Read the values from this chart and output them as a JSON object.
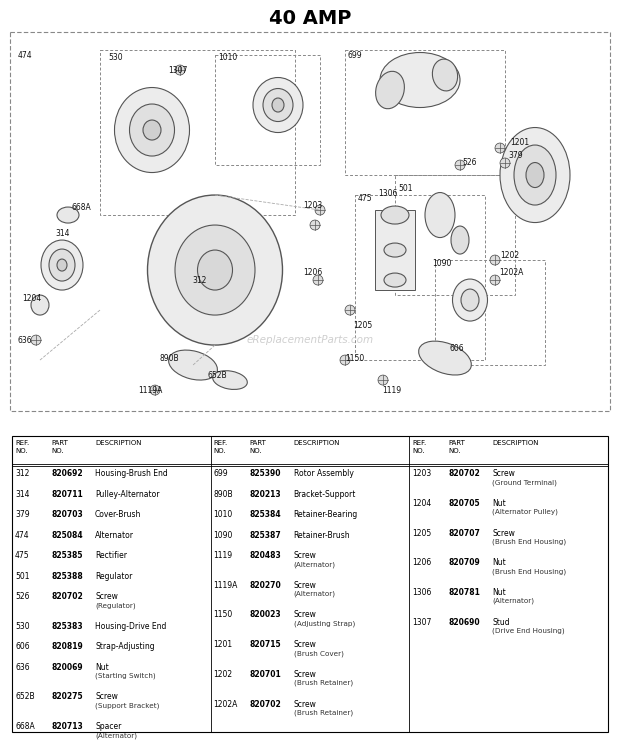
{
  "title": "40 AMP",
  "title_fontsize": 14,
  "title_fontweight": "bold",
  "bg_color": "#ffffff",
  "watermark": "eReplacementParts.com",
  "parts_table": {
    "col1": [
      [
        "312",
        "820692",
        "Housing-Brush End",
        ""
      ],
      [
        "314",
        "820711",
        "Pulley-Alternator",
        ""
      ],
      [
        "379",
        "820703",
        "Cover-Brush",
        ""
      ],
      [
        "474",
        "825084",
        "Alternator",
        ""
      ],
      [
        "475",
        "825385",
        "Rectifier",
        ""
      ],
      [
        "501",
        "825388",
        "Regulator",
        ""
      ],
      [
        "526",
        "820702",
        "Screw",
        "(Regulator)"
      ],
      [
        "530",
        "825383",
        "Housing-Drive End",
        ""
      ],
      [
        "606",
        "820819",
        "Strap-Adjusting",
        ""
      ],
      [
        "636",
        "820069",
        "Nut",
        "(Starting Switch)"
      ],
      [
        "652B",
        "820275",
        "Screw",
        "(Support Bracket)"
      ],
      [
        "668A",
        "820713",
        "Spacer",
        "(Alternator)"
      ]
    ],
    "col2": [
      [
        "699",
        "825390",
        "Rotor Assembly",
        ""
      ],
      [
        "890B",
        "820213",
        "Bracket-Support",
        ""
      ],
      [
        "1010",
        "825384",
        "Retainer-Bearing",
        ""
      ],
      [
        "1090",
        "825387",
        "Retainer-Brush",
        ""
      ],
      [
        "1119",
        "820483",
        "Screw",
        "(Alternator)"
      ],
      [
        "1119A",
        "820270",
        "Screw",
        "(Alternator)"
      ],
      [
        "1150",
        "820023",
        "Screw",
        "(Adjusting Strap)"
      ],
      [
        "1201",
        "820715",
        "Screw",
        "(Brush Cover)"
      ],
      [
        "1202",
        "820701",
        "Screw",
        "(Brush Retainer)"
      ],
      [
        "1202A",
        "820702",
        "Screw",
        "(Brush Retainer)"
      ]
    ],
    "col3": [
      [
        "1203",
        "820702",
        "Screw",
        "(Ground Terminal)"
      ],
      [
        "1204",
        "820705",
        "Nut",
        "(Alternator Pulley)"
      ],
      [
        "1205",
        "820707",
        "Screw",
        "(Brush End Housing)"
      ],
      [
        "1206",
        "820709",
        "Nut",
        "(Brush End Housing)"
      ],
      [
        "1306",
        "820781",
        "Nut",
        "(Alternator)"
      ],
      [
        "1307",
        "820690",
        "Stud",
        "(Drive End Housing)"
      ]
    ]
  }
}
